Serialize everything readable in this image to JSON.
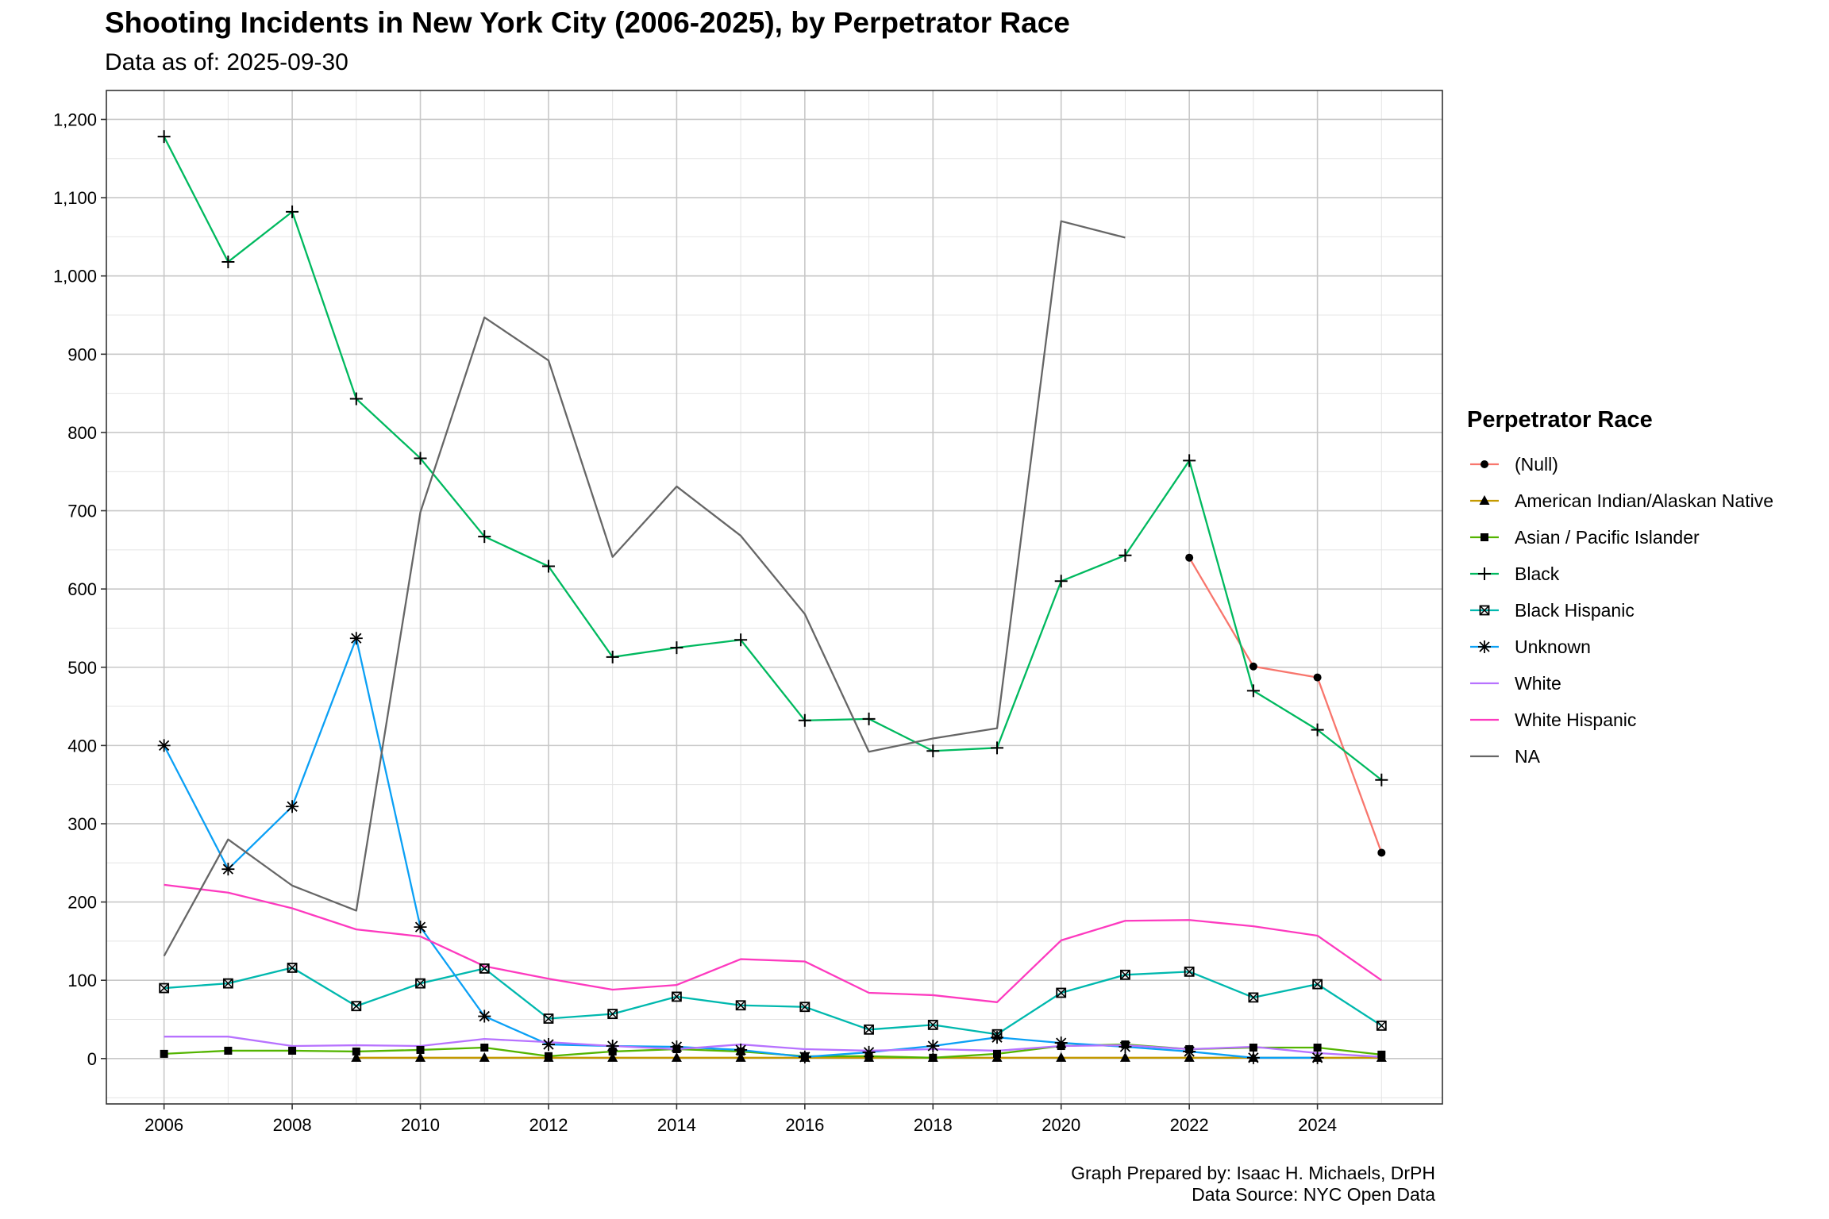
{
  "chart_data": {
    "type": "line",
    "title": "Shooting Incidents in New York City (2006-2025), by Perpetrator Race",
    "subtitle": "Data as of: 2025-09-30",
    "caption": [
      "Graph Prepared by: Isaac H. Michaels, DrPH",
      "Data Source: NYC Open Data"
    ],
    "xlabel": "",
    "ylabel": "",
    "xlim": [
      2005.1,
      2025.95
    ],
    "ylim": [
      -58,
      1237
    ],
    "x_ticks": [
      2006,
      2008,
      2010,
      2012,
      2014,
      2016,
      2018,
      2020,
      2022,
      2024
    ],
    "x_tick_labels": [
      "2006",
      "2008",
      "2010",
      "2012",
      "2014",
      "2016",
      "2018",
      "2020",
      "2022",
      "2024"
    ],
    "y_ticks": [
      0,
      100,
      200,
      300,
      400,
      500,
      600,
      700,
      800,
      900,
      1000,
      1100,
      1200
    ],
    "y_tick_labels": [
      "0",
      "100",
      "200",
      "300",
      "400",
      "500",
      "600",
      "700",
      "800",
      "900",
      "1,000",
      "1,100",
      "1,200"
    ],
    "grid": true,
    "legend_title": "Perpetrator Race",
    "legend_position": "right",
    "series": [
      {
        "name": "(Null)",
        "color": "#F8766D",
        "marker": "circle",
        "x": [
          2022,
          2023,
          2024,
          2025
        ],
        "values": [
          640,
          501,
          487,
          263
        ]
      },
      {
        "name": "American Indian/Alaskan Native",
        "color": "#C49A00",
        "marker": "triangle",
        "x": [
          2009,
          2010,
          2011,
          2012,
          2013,
          2014,
          2015,
          2016,
          2017,
          2018,
          2019,
          2020,
          2021,
          2022,
          2023,
          2024,
          2025
        ],
        "values": [
          1,
          1,
          1,
          1,
          1,
          1,
          1,
          1,
          1,
          1,
          1,
          1,
          1,
          1,
          1,
          1,
          1
        ]
      },
      {
        "name": "Asian / Pacific Islander",
        "color": "#53B400",
        "marker": "square",
        "x": [
          2006,
          2007,
          2008,
          2009,
          2010,
          2011,
          2012,
          2013,
          2014,
          2015,
          2016,
          2017,
          2018,
          2019,
          2020,
          2021,
          2022,
          2023,
          2024,
          2025
        ],
        "values": [
          6,
          10,
          10,
          9,
          11,
          14,
          3,
          9,
          12,
          9,
          3,
          3,
          1,
          6,
          16,
          18,
          12,
          14,
          14,
          5
        ]
      },
      {
        "name": "Black",
        "color": "#00B95F",
        "marker": "plus",
        "x": [
          2006,
          2007,
          2008,
          2009,
          2010,
          2011,
          2012,
          2013,
          2014,
          2015,
          2016,
          2017,
          2018,
          2019,
          2020,
          2021,
          2022,
          2023,
          2024,
          2025
        ],
        "values": [
          1178,
          1018,
          1082,
          843,
          767,
          667,
          629,
          513,
          525,
          535,
          432,
          434,
          393,
          397,
          610,
          643,
          764,
          470,
          420,
          356
        ]
      },
      {
        "name": "Black Hispanic",
        "color": "#00B8AE",
        "marker": "boxx",
        "x": [
          2006,
          2007,
          2008,
          2009,
          2010,
          2011,
          2012,
          2013,
          2014,
          2015,
          2016,
          2017,
          2018,
          2019,
          2020,
          2021,
          2022,
          2023,
          2024,
          2025
        ],
        "values": [
          90,
          96,
          116,
          67,
          96,
          115,
          51,
          57,
          79,
          68,
          66,
          37,
          43,
          31,
          84,
          107,
          111,
          78,
          95,
          42
        ]
      },
      {
        "name": "Unknown",
        "color": "#0BA0F5",
        "marker": "asterisk",
        "x": [
          2006,
          2007,
          2008,
          2009,
          2010,
          2011,
          2012,
          2013,
          2014,
          2015,
          2016,
          2017,
          2018,
          2019,
          2020,
          2021,
          2022,
          2023,
          2024,
          2025
        ],
        "values": [
          400,
          242,
          322,
          537,
          168,
          54,
          18,
          16,
          15,
          11,
          2,
          8,
          16,
          27,
          20,
          15,
          9,
          1,
          1,
          null
        ]
      },
      {
        "name": "White",
        "color": "#B772FF",
        "marker": "none",
        "x": [
          2006,
          2007,
          2008,
          2009,
          2010,
          2011,
          2012,
          2013,
          2014,
          2015,
          2016,
          2017,
          2018,
          2019,
          2020,
          2021,
          2022,
          2023,
          2024,
          2025
        ],
        "values": [
          28,
          28,
          16,
          17,
          16,
          25,
          21,
          16,
          12,
          18,
          12,
          10,
          12,
          10,
          16,
          17,
          12,
          15,
          7,
          2
        ]
      },
      {
        "name": "White Hispanic",
        "color": "#FD3ABF",
        "marker": "none",
        "x": [
          2006,
          2007,
          2008,
          2009,
          2010,
          2011,
          2012,
          2013,
          2014,
          2015,
          2016,
          2017,
          2018,
          2019,
          2020,
          2021,
          2022,
          2023,
          2024,
          2025
        ],
        "values": [
          222,
          212,
          192,
          165,
          156,
          118,
          102,
          88,
          94,
          127,
          124,
          84,
          81,
          72,
          151,
          176,
          177,
          169,
          157,
          100
        ]
      },
      {
        "name": "NA",
        "color": "#666666",
        "marker": "none",
        "x": [
          2006,
          2007,
          2008,
          2009,
          2010,
          2011,
          2012,
          2013,
          2014,
          2015,
          2016,
          2017,
          2018,
          2019,
          2020,
          2021
        ],
        "values": [
          131,
          280,
          221,
          189,
          698,
          947,
          892,
          641,
          731,
          668,
          568,
          392,
          409,
          422,
          1070,
          1049
        ]
      }
    ]
  }
}
